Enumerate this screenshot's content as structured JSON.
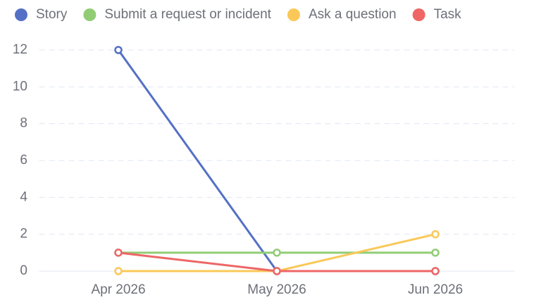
{
  "chart_data": {
    "type": "line",
    "categories": [
      "Apr 2026",
      "May 2026",
      "Jun 2026"
    ],
    "series": [
      {
        "name": "Story",
        "color": "#5470c6",
        "values": [
          12,
          0,
          0
        ]
      },
      {
        "name": "Submit a request or incident",
        "color": "#91cc75",
        "values": [
          1,
          1,
          1
        ]
      },
      {
        "name": "Ask a question",
        "color": "#fac858",
        "values": [
          0,
          0,
          2
        ]
      },
      {
        "name": "Task",
        "color": "#ee6666",
        "values": [
          1,
          0,
          0
        ]
      }
    ],
    "ylim": [
      0,
      12
    ],
    "yticks": [
      0,
      2,
      4,
      6,
      8,
      10,
      12
    ],
    "grid": true,
    "legend": "top"
  }
}
